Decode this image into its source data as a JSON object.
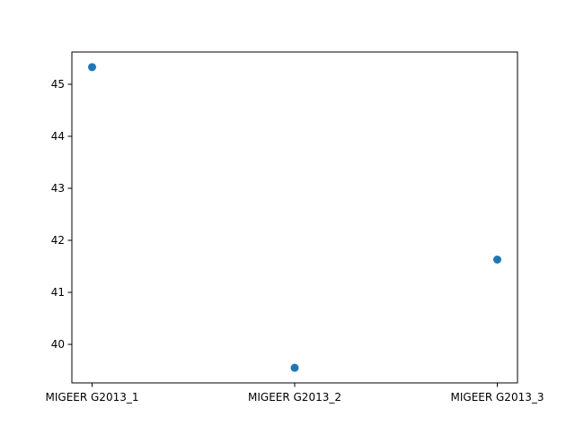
{
  "chart_data": {
    "type": "scatter",
    "title": "",
    "xlabel": "",
    "ylabel": "",
    "categories": [
      "MIGEER G2013_1",
      "MIGEER G2013_2",
      "MIGEER G2013_3"
    ],
    "series": [
      {
        "values": [
          45.33,
          39.55,
          41.63
        ],
        "color": "#1f77b4"
      }
    ],
    "yticks": [
      40,
      41,
      42,
      43,
      44,
      45
    ],
    "ylim": [
      39.26,
      45.62
    ],
    "grid": false,
    "legend": false
  }
}
